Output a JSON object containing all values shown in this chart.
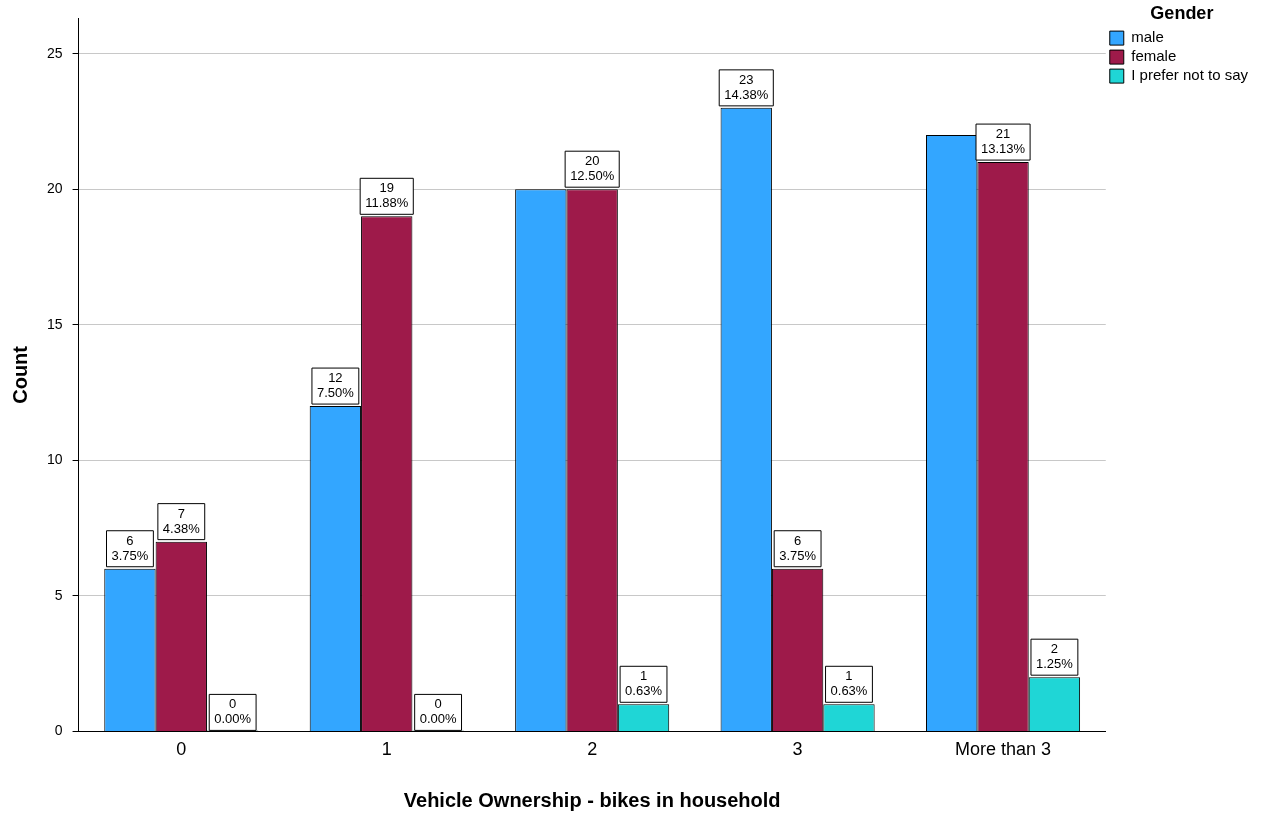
{
  "chart_data": {
    "type": "bar",
    "xlabel": "Vehicle Ownership - bikes in household",
    "ylabel": "Count",
    "legend_title": "Gender",
    "legend": "top right",
    "grid": "y",
    "categories": [
      "0",
      "1",
      "2",
      "3",
      "More than 3"
    ],
    "ylim": [
      0,
      26.3
    ],
    "yticks": [
      0,
      5,
      10,
      15,
      20,
      25
    ],
    "series": [
      {
        "name": "male",
        "color": "#33a6ff",
        "values": [
          6,
          12,
          20,
          23,
          22
        ],
        "value_labels": [
          "6\n3.75%",
          "12\n7.50%",
          null,
          "23\n14.38%",
          null
        ]
      },
      {
        "name": "female",
        "color": "#9e1a4a",
        "values": [
          7,
          19,
          20,
          6,
          21
        ],
        "value_labels": [
          "7\n4.38%",
          "19\n11.88%",
          "20\n12.50%",
          "6\n3.75%",
          "21\n13.13%"
        ]
      },
      {
        "name": "I prefer not to say",
        "color": "#1fd6d6",
        "values": [
          0,
          0,
          1,
          1,
          2
        ],
        "value_labels": [
          "0\n0.00%",
          "0\n0.00%",
          "1\n0.63%",
          "1\n0.63%",
          "2\n1.25%"
        ]
      }
    ]
  }
}
